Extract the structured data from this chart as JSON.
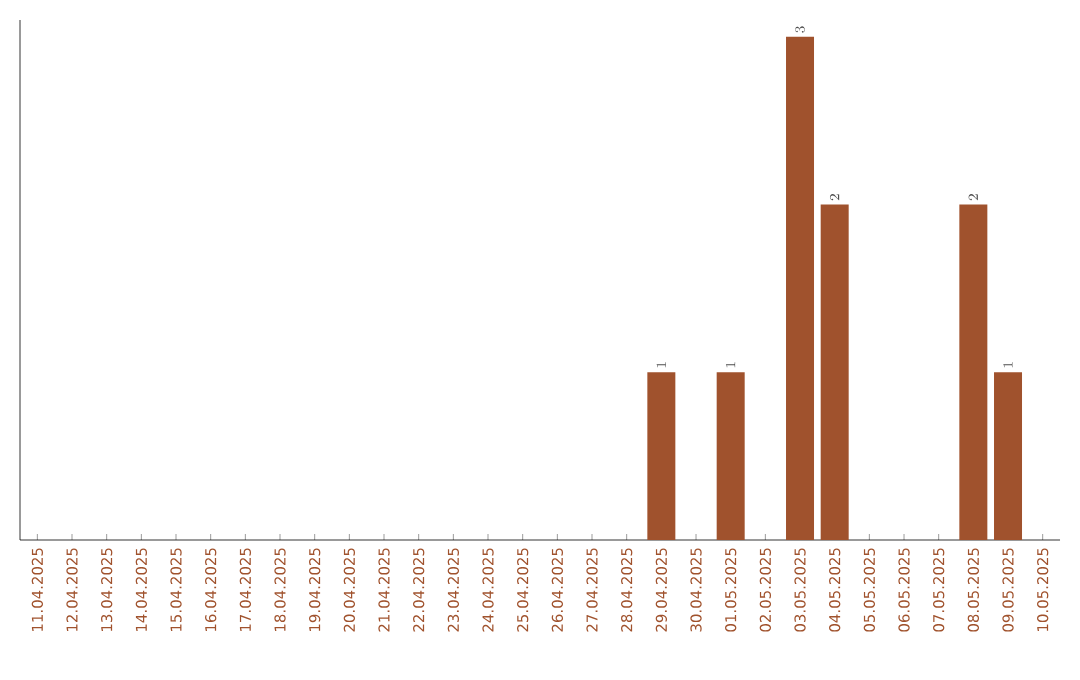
{
  "chart_data": {
    "type": "bar",
    "categories": [
      "11.04.2025",
      "12.04.2025",
      "13.04.2025",
      "14.04.2025",
      "15.04.2025",
      "16.04.2025",
      "17.04.2025",
      "18.04.2025",
      "19.04.2025",
      "20.04.2025",
      "21.04.2025",
      "22.04.2025",
      "23.04.2025",
      "24.04.2025",
      "25.04.2025",
      "26.04.2025",
      "27.04.2025",
      "28.04.2025",
      "29.04.2025",
      "30.04.2025",
      "01.05.2025",
      "02.05.2025",
      "03.05.2025",
      "04.05.2025",
      "05.05.2025",
      "06.05.2025",
      "07.05.2025",
      "08.05.2025",
      "09.05.2025",
      "10.05.2025"
    ],
    "values": [
      null,
      null,
      null,
      null,
      null,
      null,
      null,
      null,
      null,
      null,
      null,
      null,
      null,
      null,
      null,
      null,
      null,
      null,
      1,
      null,
      1,
      null,
      3,
      2,
      null,
      null,
      null,
      2,
      1,
      null
    ],
    "data_labels": true,
    "color": "#a0522d",
    "ylim": [
      0,
      3.1
    ],
    "tick_labels": "x",
    "grid": false
  }
}
